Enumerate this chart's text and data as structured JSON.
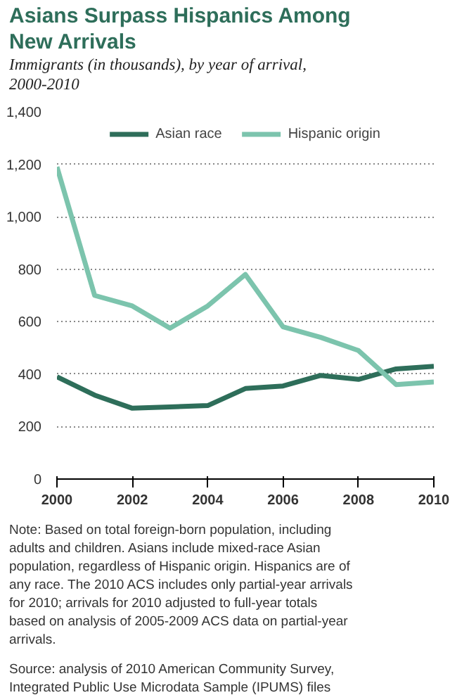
{
  "chart_data": {
    "type": "line",
    "title": "Asians Surpass Hispanics Among New Arrivals",
    "subtitle": "Immigrants (in thousands), by year of arrival, 2000-2010",
    "x": [
      2000,
      2001,
      2002,
      2003,
      2004,
      2005,
      2006,
      2007,
      2008,
      2009,
      2010
    ],
    "series": [
      {
        "name": "Asian race",
        "color": "#2e6e5a",
        "values": [
          390,
          320,
          270,
          275,
          280,
          345,
          355,
          395,
          380,
          420,
          430
        ]
      },
      {
        "name": "Hispanic origin",
        "color": "#7cc4ad",
        "values": [
          1190,
          700,
          660,
          575,
          660,
          780,
          580,
          540,
          490,
          360,
          370
        ]
      }
    ],
    "xlim": [
      2000,
      2010
    ],
    "xticks": [
      2000,
      2002,
      2004,
      2006,
      2008,
      2010
    ],
    "ylim": [
      0,
      1400
    ],
    "yticks": [
      {
        "value": 0,
        "label": "0"
      },
      {
        "value": 200,
        "label": "200"
      },
      {
        "value": 400,
        "label": "400"
      },
      {
        "value": 600,
        "label": "600"
      },
      {
        "value": 800,
        "label": "800"
      },
      {
        "value": 1000,
        "label": "1,000"
      },
      {
        "value": 1200,
        "label": "1,200"
      },
      {
        "value": 1400,
        "label": "1,400"
      }
    ],
    "grid": "y",
    "legend": "top",
    "marker": "none",
    "line_style": "solid",
    "annotations": [
      "Note: Based on total foreign-born population, including adults and children. Asians include mixed-race Asian population, regardless of Hispanic origin. Hispanics are of any race. The 2010 ACS includes only partial-year arrivals for 2010; arrivals for 2010 adjusted to full-year totals based on analysis of 2005-2009 ACS data on partial-year arrivals.",
      "Source: analysis of 2010 American Community Survey, Integrated Public Use Microdata Sample (IPUMS) files"
    ]
  }
}
